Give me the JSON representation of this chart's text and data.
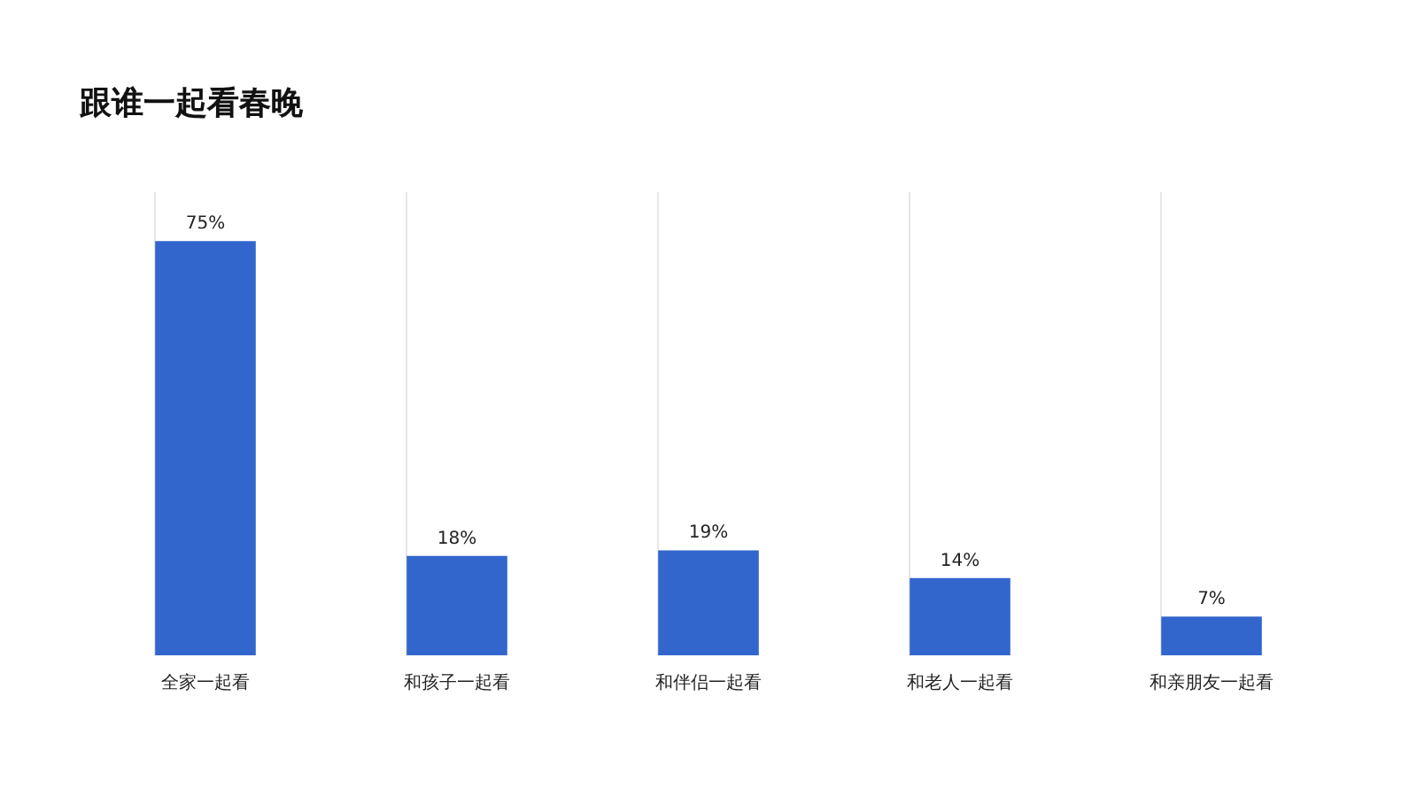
{
  "chart_data": {
    "type": "bar",
    "title": "跟谁一起看春晚",
    "categories": [
      "全家一起看",
      "和孩子一起看",
      "和伴侣一起看",
      "和老人一起看",
      "和亲朋友一起看"
    ],
    "values": [
      75,
      18,
      19,
      14,
      7
    ],
    "color": "#3366cc",
    "value_labels": [
      "75%",
      "18%",
      "19%",
      "14%",
      "7%"
    ],
    "grid": "x"
  }
}
